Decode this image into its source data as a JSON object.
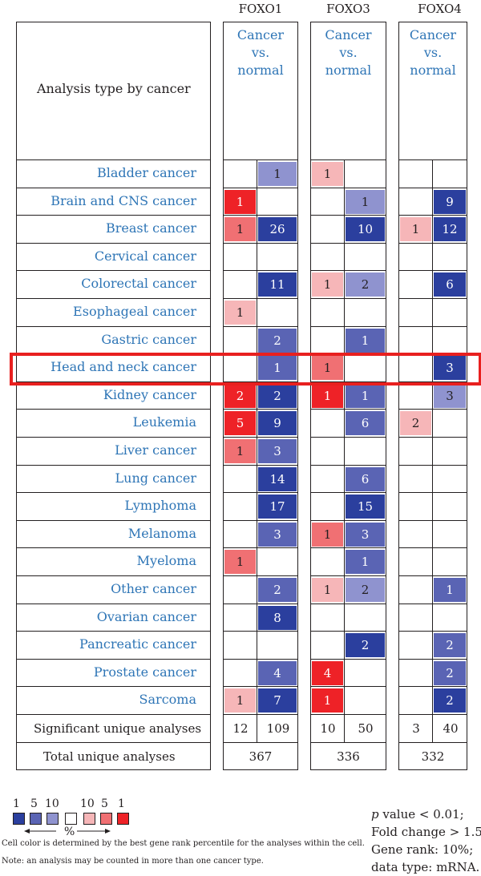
{
  "header": {
    "analysis_label": "Analysis type by cancer"
  },
  "genes": [
    {
      "name": "FOXO1",
      "subheader": [
        "Cancer",
        "vs.",
        "normal"
      ]
    },
    {
      "name": "FOXO3",
      "subheader": [
        "Cancer",
        "vs.",
        "normal"
      ]
    },
    {
      "name": "FOXO4",
      "subheader": [
        "Cancer",
        "vs.",
        "normal"
      ]
    }
  ],
  "chart_data": {
    "type": "table",
    "cancers": [
      "Bladder cancer",
      "Brain and CNS cancer",
      "Breast cancer",
      "Cervical cancer",
      "Colorectal cancer",
      "Esophageal cancer",
      "Gastric cancer",
      "Head and neck cancer",
      "Kidney cancer",
      "Leukemia",
      "Liver cancer",
      "Lung cancer",
      "Lymphoma",
      "Melanoma",
      "Myeloma",
      "Other cancer",
      "Ovarian cancer",
      "Pancreatic cancer",
      "Prostate cancer",
      "Sarcoma"
    ],
    "values": {
      "FOXO1": {
        "up": [
          null,
          1,
          1,
          null,
          null,
          1,
          null,
          null,
          2,
          5,
          1,
          null,
          null,
          null,
          1,
          null,
          null,
          null,
          null,
          1
        ],
        "down": [
          1,
          null,
          26,
          null,
          11,
          null,
          2,
          1,
          2,
          9,
          3,
          14,
          17,
          3,
          null,
          2,
          8,
          null,
          4,
          7
        ]
      },
      "FOXO3": {
        "up": [
          1,
          null,
          null,
          null,
          1,
          null,
          null,
          1,
          1,
          null,
          null,
          null,
          null,
          1,
          null,
          1,
          null,
          null,
          4,
          1
        ],
        "down": [
          null,
          1,
          10,
          null,
          2,
          null,
          1,
          null,
          1,
          6,
          null,
          6,
          15,
          3,
          1,
          2,
          null,
          2,
          null,
          null
        ]
      },
      "FOXO4": {
        "up": [
          null,
          null,
          1,
          null,
          null,
          null,
          null,
          null,
          null,
          2,
          null,
          null,
          null,
          null,
          null,
          null,
          null,
          null,
          null,
          null
        ],
        "down": [
          null,
          9,
          12,
          null,
          6,
          null,
          null,
          3,
          3,
          null,
          null,
          null,
          null,
          null,
          null,
          1,
          null,
          2,
          2,
          2
        ]
      }
    },
    "cell_colors": {
      "FOXO1": {
        "up": [
          null,
          "#ee2227",
          "#f07073",
          null,
          null,
          "#f6b6b8",
          null,
          null,
          "#ee2227",
          "#ee2227",
          "#f07073",
          null,
          null,
          null,
          "#f07073",
          null,
          null,
          null,
          null,
          "#f6b6b8"
        ],
        "down": [
          "#8f93cf",
          null,
          "#2b3f9e",
          null,
          "#2b3f9e",
          null,
          "#5a64b4",
          "#5a64b4",
          "#2b3f9e",
          "#2b3f9e",
          "#5a64b4",
          "#2b3f9e",
          "#2b3f9e",
          "#5a64b4",
          null,
          "#5a64b4",
          "#2b3f9e",
          null,
          "#5a64b4",
          "#2b3f9e"
        ]
      },
      "FOXO3": {
        "up": [
          "#f6b6b8",
          null,
          null,
          null,
          "#f6b6b8",
          null,
          null,
          "#f07073",
          "#ee2227",
          null,
          null,
          null,
          null,
          "#f07073",
          null,
          "#f6b6b8",
          null,
          null,
          "#ee2227",
          "#ee2227"
        ],
        "down": [
          null,
          "#8f93cf",
          "#2b3f9e",
          null,
          "#8f93cf",
          null,
          "#5a64b4",
          null,
          "#5a64b4",
          "#5a64b4",
          null,
          "#5a64b4",
          "#2b3f9e",
          "#5a64b4",
          "#5a64b4",
          "#8f93cf",
          null,
          "#2b3f9e",
          null,
          null
        ]
      },
      "FOXO4": {
        "up": [
          null,
          null,
          "#f6b6b8",
          null,
          null,
          null,
          null,
          null,
          null,
          "#f6b6b8",
          null,
          null,
          null,
          null,
          null,
          null,
          null,
          null,
          null,
          null
        ],
        "down": [
          null,
          "#2b3f9e",
          "#2b3f9e",
          null,
          "#2b3f9e",
          null,
          null,
          "#2b3f9e",
          "#8f93cf",
          null,
          null,
          null,
          null,
          null,
          null,
          "#5a64b4",
          null,
          "#5a64b4",
          "#5a64b4",
          "#2b3f9e"
        ]
      }
    },
    "significant_label": "Significant unique analyses",
    "significant": {
      "FOXO1": [
        12,
        109
      ],
      "FOXO3": [
        10,
        50
      ],
      "FOXO4": [
        3,
        40
      ]
    },
    "total_label": "Total unique analyses",
    "total": {
      "FOXO1": 367,
      "FOXO3": 336,
      "FOXO4": 332
    },
    "highlighted_row": "Head and neck cancer",
    "highlight_color": "#e8201f"
  },
  "legend": {
    "numbers": [
      "1",
      "5",
      "10",
      "10",
      "5",
      "1"
    ],
    "colors": [
      "#2b3f9e",
      "#5a64b4",
      "#8f93cf",
      "#ffffff",
      "#f6b6b8",
      "#f07073",
      "#ee2227"
    ],
    "percent_label": "%",
    "note1": "Cell color is determined by the best gene rank percentile for the analyses within the cell.",
    "note2": "Note: an analysis may be counted in more than one cancer type."
  },
  "criteria": {
    "line1_italic": "p",
    "line1_rest": " value < 0.01;",
    "line2": "Fold change > 1.5;",
    "line3": "Gene rank: 10%;",
    "line4": "data type: mRNA."
  }
}
